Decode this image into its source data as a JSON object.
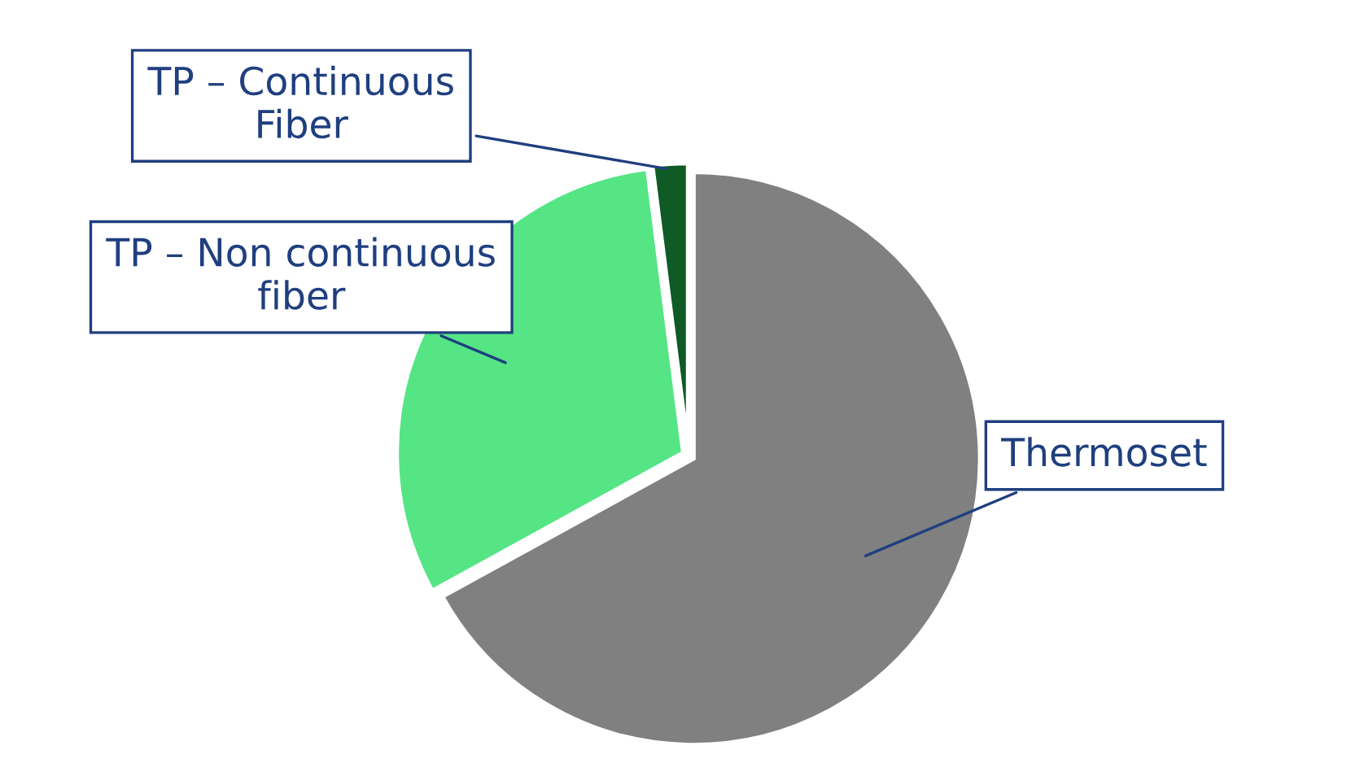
{
  "chart_data": {
    "type": "pie",
    "categories": [
      "Thermoset",
      "TP – Non continuous\nfiber",
      "TP – Continuous\nFiber"
    ],
    "values": [
      67,
      31,
      2
    ],
    "colors": [
      "#808080",
      "#55e585",
      "#0f5a25"
    ],
    "legend": false
  }
}
